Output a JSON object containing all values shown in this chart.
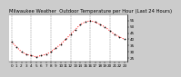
{
  "title": "Milwaukee Weather  Outdoor Temperature per Hour (Last 24 Hours)",
  "hours": [
    0,
    1,
    2,
    3,
    4,
    5,
    6,
    7,
    8,
    9,
    10,
    11,
    12,
    13,
    14,
    15,
    16,
    17,
    18,
    19,
    20,
    21,
    22,
    23
  ],
  "temps": [
    38,
    34,
    30,
    28,
    27,
    26,
    27,
    28,
    30,
    33,
    36,
    40,
    44,
    48,
    52,
    54,
    55,
    54,
    52,
    50,
    47,
    44,
    42,
    40
  ],
  "line_color": "#ff0000",
  "marker_color": "#000000",
  "background_color": "#cccccc",
  "plot_bg_color": "#ffffff",
  "grid_color": "#888888",
  "ylim": [
    22,
    60
  ],
  "ytick_values": [
    25,
    30,
    35,
    40,
    45,
    50,
    55
  ],
  "ytick_labels": [
    "25",
    "30",
    "35",
    "40",
    "45",
    "50",
    "55"
  ],
  "grid_hours": [
    0,
    4,
    8,
    12,
    16,
    20
  ],
  "title_fontsize": 3.8,
  "tick_fontsize": 3.0,
  "line_width": 0.7,
  "marker_size": 1.8
}
